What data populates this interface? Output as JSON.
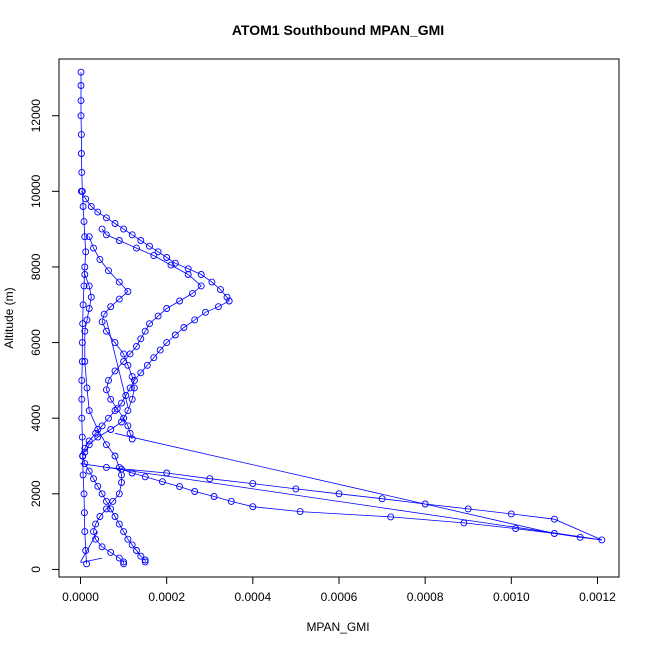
{
  "chart_data": {
    "type": "scatter",
    "title": "ATOM1 Southbound MPAN_GMI",
    "xlabel": "MPAN_GMI",
    "ylabel": "Altitude (m)",
    "xlim": [
      -5e-05,
      0.00125
    ],
    "ylim": [
      -200,
      13500
    ],
    "x_ticks": [
      0,
      0.0002,
      0.0004,
      0.0006,
      0.0008,
      0.001,
      0.0012
    ],
    "x_tick_labels": [
      "0.0000",
      "0.0002",
      "0.0004",
      "0.0006",
      "0.0008",
      "0.0010",
      "0.0012"
    ],
    "y_ticks": [
      0,
      2000,
      4000,
      6000,
      8000,
      10000,
      12000
    ],
    "y_tick_labels": [
      "0",
      "2000",
      "4000",
      "6000",
      "8000",
      "10000",
      "12000"
    ],
    "grid": false,
    "legend": "none",
    "color": "#0000ff",
    "marker": "open-circle",
    "series": [
      {
        "profiles": [
          [
            [
              1e-06,
              13150
            ],
            [
              1e-06,
              12800
            ],
            [
              1e-06,
              12400
            ],
            [
              1e-06,
              12000
            ],
            [
              2e-06,
              11500
            ],
            [
              2e-06,
              11000
            ],
            [
              3e-06,
              10500
            ],
            [
              4e-06,
              10000
            ],
            [
              6e-06,
              9600
            ],
            [
              8e-06,
              9200
            ],
            [
              1e-05,
              8800
            ],
            [
              1.2e-05,
              8400
            ],
            [
              1e-05,
              8000
            ],
            [
              8e-06,
              7500
            ],
            [
              6e-06,
              7000
            ],
            [
              5e-06,
              6500
            ],
            [
              4e-06,
              6000
            ],
            [
              4e-06,
              5500
            ],
            [
              3e-06,
              5000
            ],
            [
              3e-06,
              4500
            ],
            [
              3e-06,
              4000
            ],
            [
              4e-06,
              3500
            ],
            [
              5e-06,
              3000
            ],
            [
              6e-06,
              2500
            ],
            [
              8e-06,
              2000
            ],
            [
              9e-06,
              1500
            ],
            [
              1e-05,
              1000
            ],
            [
              1.2e-05,
              500
            ],
            [
              1.4e-05,
              150
            ]
          ],
          [
            [
              2e-06,
              10000
            ],
            [
              1.2e-05,
              9800
            ],
            [
              2.5e-05,
              9600
            ],
            [
              4e-05,
              9450
            ],
            [
              6e-05,
              9300
            ],
            [
              8e-05,
              9150
            ],
            [
              0.0001,
              9000
            ],
            [
              0.00012,
              8850
            ],
            [
              0.00014,
              8700
            ],
            [
              0.00016,
              8550
            ],
            [
              0.00018,
              8400
            ],
            [
              0.0002,
              8250
            ],
            [
              0.00022,
              8100
            ],
            [
              0.00025,
              7950
            ],
            [
              0.00028,
              7800
            ],
            [
              0.000305,
              7600
            ],
            [
              0.000325,
              7400
            ],
            [
              0.00034,
              7200
            ],
            [
              0.000345,
              7100
            ],
            [
              0.00032,
              6950
            ],
            [
              0.00029,
              6800
            ],
            [
              0.000265,
              6600
            ],
            [
              0.00024,
              6400
            ],
            [
              0.00022,
              6200
            ],
            [
              0.0002,
              6000
            ],
            [
              0.000185,
              5800
            ],
            [
              0.00017,
              5600
            ],
            [
              0.000155,
              5400
            ],
            [
              0.00014,
              5200
            ],
            [
              0.000125,
              5000
            ],
            [
              0.000115,
              4800
            ],
            [
              0.000105,
              4600
            ],
            [
              9.5e-05,
              4400
            ],
            [
              8e-05,
              4200
            ],
            [
              6.5e-05,
              4000
            ],
            [
              5e-05,
              3800
            ],
            [
              3.5e-05,
              3600
            ],
            [
              2e-05,
              3400
            ],
            [
              1e-05,
              3200
            ],
            [
              5e-06,
              3000
            ]
          ],
          [
            [
              5e-05,
              9000
            ],
            [
              6e-05,
              8850
            ],
            [
              9e-05,
              8700
            ],
            [
              0.00013,
              8500
            ],
            [
              0.00017,
              8300
            ],
            [
              0.00021,
              8050
            ],
            [
              0.00025,
              7800
            ],
            [
              0.00028,
              7500
            ],
            [
              0.00026,
              7300
            ],
            [
              0.00023,
              7100
            ],
            [
              0.0002,
              6900
            ],
            [
              0.00018,
              6700
            ],
            [
              0.00016,
              6500
            ],
            [
              0.00015,
              6300
            ],
            [
              0.00014,
              6100
            ],
            [
              0.00013,
              5900
            ],
            [
              0.000115,
              5700
            ],
            [
              0.0001,
              5500
            ],
            [
              8e-05,
              5250
            ],
            [
              6.5e-05,
              5000
            ],
            [
              6e-05,
              4750
            ],
            [
              7e-05,
              4500
            ],
            [
              8.5e-05,
              4250
            ],
            [
              0.0001,
              4000
            ],
            [
              0.00011,
              3800
            ],
            [
              0.000115,
              3600
            ],
            [
              0.00012,
              3450
            ]
          ],
          [
            [
              2e-05,
              8800
            ],
            [
              3e-05,
              8500
            ],
            [
              4.5e-05,
              8200
            ],
            [
              6.5e-05,
              7900
            ],
            [
              9e-05,
              7600
            ],
            [
              0.00011,
              7350
            ],
            [
              9e-05,
              7150
            ],
            [
              7e-05,
              6950
            ],
            [
              5.5e-05,
              6750
            ],
            [
              5e-05,
              6550
            ],
            [
              6e-05,
              6300
            ],
            [
              8e-05,
              6000
            ],
            [
              0.0001,
              5700
            ],
            [
              0.00011,
              5400
            ],
            [
              0.00012,
              5100
            ],
            [
              0.000125,
              4800
            ],
            [
              0.00012,
              4500
            ],
            [
              0.00011,
              4200
            ],
            [
              9.5e-05,
              3900
            ],
            [
              7e-05,
              3700
            ],
            [
              4e-05,
              3500
            ],
            [
              2e-05,
              3300
            ],
            [
              1e-05,
              3100
            ]
          ],
          [
            [
              1e-05,
              7800
            ],
            [
              2e-05,
              7500
            ],
            [
              2.5e-05,
              7200
            ],
            [
              2e-05,
              6900
            ],
            [
              1.5e-05,
              6600
            ],
            [
              1e-05,
              6300
            ],
            [
              1e-05,
              5500
            ],
            [
              1.5e-05,
              4800
            ],
            [
              2e-05,
              4200
            ],
            [
              4e-05,
              3700
            ],
            [
              6e-05,
              3300
            ],
            [
              8e-05,
              3000
            ],
            [
              9e-05,
              2700
            ],
            [
              9.5e-05,
              2500
            ],
            [
              9.5e-05,
              2300
            ],
            [
              9e-05,
              2000
            ],
            [
              7.5e-05,
              1800
            ],
            [
              6e-05,
              1600
            ],
            [
              4.5e-05,
              1400
            ],
            [
              3.5e-05,
              1200
            ],
            [
              3e-05,
              1000
            ],
            [
              3.5e-05,
              800
            ],
            [
              5e-05,
              600
            ],
            [
              7e-05,
              450
            ],
            [
              9e-05,
              300
            ],
            [
              0.0001,
              200
            ],
            [
              0.0001,
              150
            ]
          ],
          [
            [
              5e-06,
              3000
            ],
            [
              1e-05,
              2800
            ],
            [
              2e-05,
              2600
            ],
            [
              3e-05,
              2400
            ],
            [
              4e-05,
              2200
            ],
            [
              5e-05,
              2000
            ],
            [
              6e-05,
              1800
            ],
            [
              7e-05,
              1600
            ],
            [
              8e-05,
              1400
            ],
            [
              9e-05,
              1200
            ],
            [
              0.0001,
              1000
            ],
            [
              0.00011,
              800
            ],
            [
              0.00012,
              650
            ],
            [
              0.00013,
              500
            ],
            [
              0.00014,
              350
            ],
            [
              0.00015,
              250
            ],
            [
              0.00015,
              200
            ]
          ],
          [
            [
              6e-05,
              2700
            ],
            [
              0.0002,
              2550
            ],
            [
              0.0003,
              2400
            ],
            [
              0.0004,
              2270
            ],
            [
              0.0005,
              2130
            ],
            [
              0.0006,
              2000
            ],
            [
              0.0007,
              1870
            ],
            [
              0.0008,
              1730
            ],
            [
              0.0009,
              1600
            ],
            [
              0.001,
              1470
            ],
            [
              0.0011,
              1330
            ],
            [
              0.00121,
              780
            ],
            [
              0.00116,
              850
            ],
            [
              0.0011,
              950
            ],
            [
              0.00101,
              1080
            ],
            [
              0.00089,
              1230
            ],
            [
              0.00072,
              1390
            ],
            [
              0.00051,
              1530
            ],
            [
              0.0004,
              1660
            ],
            [
              0.00035,
              1800
            ],
            [
              0.00031,
              1930
            ],
            [
              0.000265,
              2060
            ],
            [
              0.00023,
              2190
            ],
            [
              0.00019,
              2320
            ],
            [
              0.00015,
              2450
            ],
            [
              0.00012,
              2550
            ],
            [
              9.5e-05,
              2650
            ]
          ]
        ],
        "lines": [
          [
            [
              0.0,
              2800
            ],
            [
              0.00121,
              780
            ]
          ],
          [
            [
              8e-05,
              3600
            ],
            [
              0.0011,
              950
            ]
          ],
          [
            [
              6e-05,
              6600
            ],
            [
              0.00011,
              4300
            ]
          ],
          [
            [
              0.0,
              200
            ],
            [
              4e-05,
              1000
            ]
          ],
          [
            [
              0.0,
              180
            ],
            [
              5e-05,
              300
            ]
          ]
        ]
      }
    ]
  }
}
